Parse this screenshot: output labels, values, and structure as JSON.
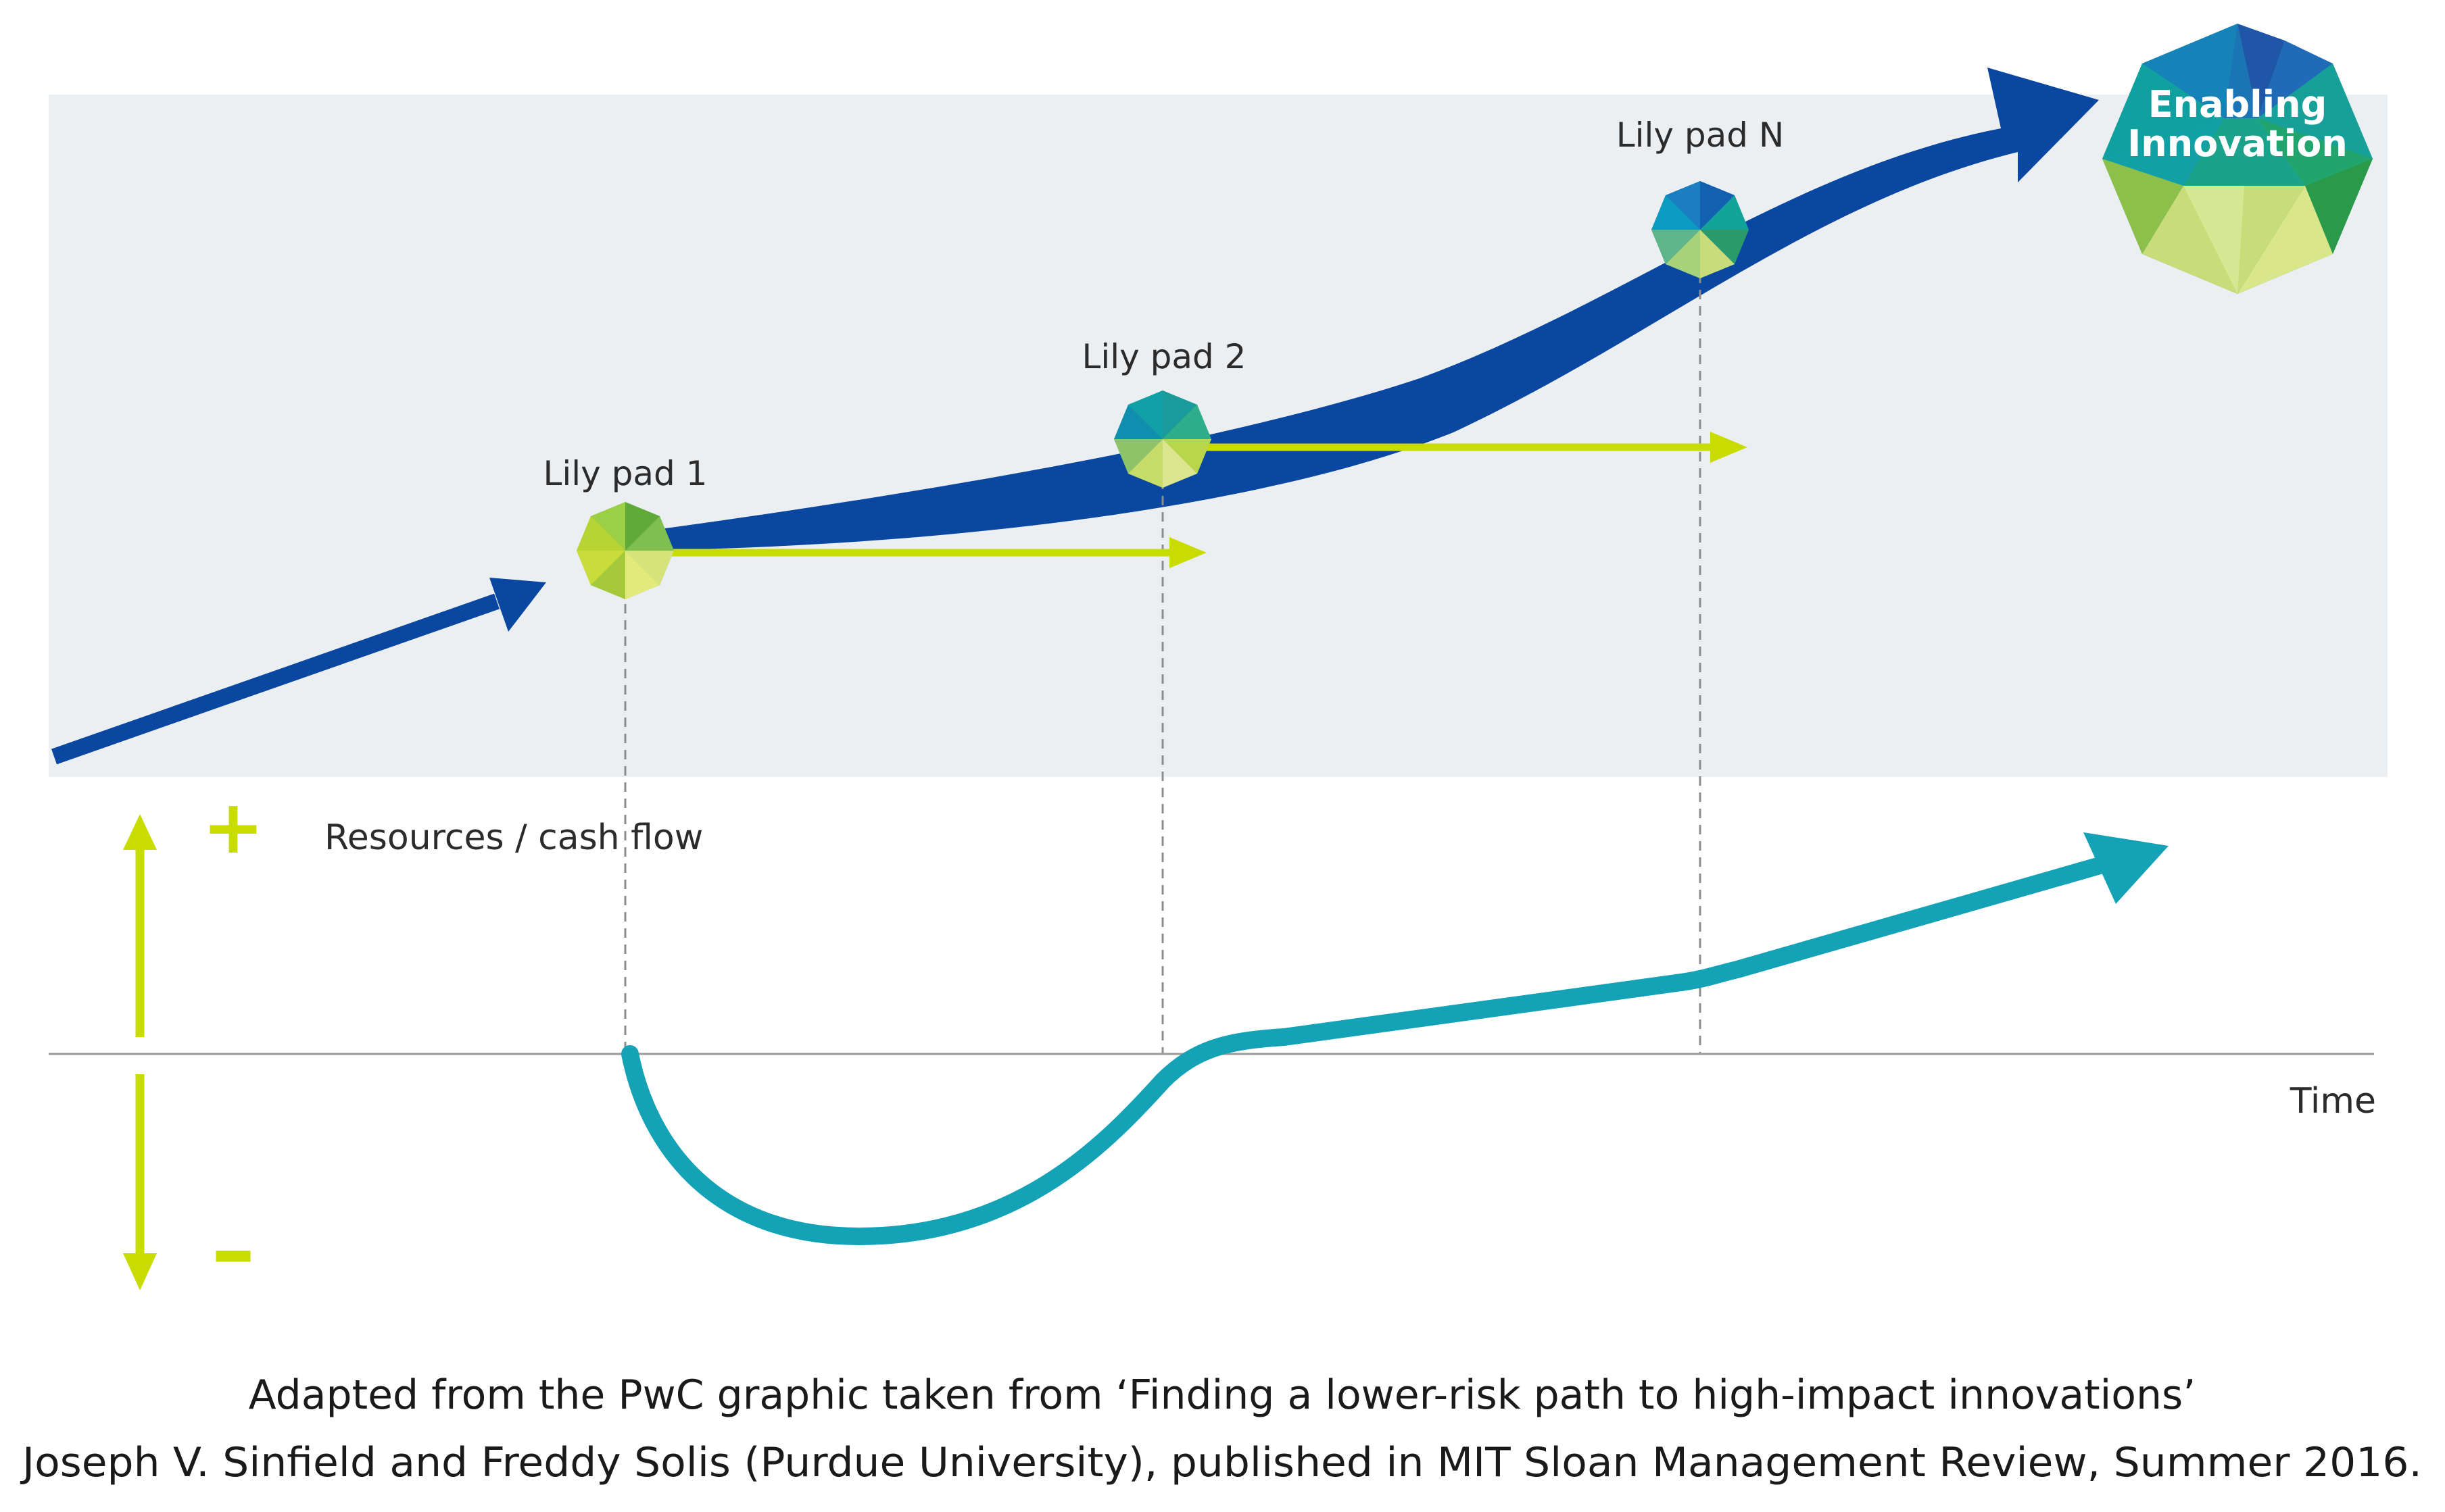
{
  "diagram": {
    "lily_pads": [
      {
        "label": "Lily pad 1"
      },
      {
        "label": "Lily pad 2"
      },
      {
        "label": "Lily pad N"
      }
    ],
    "goal": {
      "line1": "Enabling",
      "line2": "Innovation"
    },
    "y_axis": {
      "plus": "+",
      "minus": "–",
      "label": "Resources / cash flow"
    },
    "x_axis": {
      "label": "Time"
    }
  },
  "caption": {
    "line1": "Adapted from the PwC graphic taken from ‘Finding a lower-risk path to high-impact innovations’",
    "line2": "Joseph V. Sinfield and Freddy Solis (Purdue University), published in MIT Sloan Management Review, Summer 2016."
  },
  "colors": {
    "panel": "#eceff2",
    "path_blue": "#0a47a0",
    "lime": "#c8dc00",
    "cash_teal": "#14a2b6",
    "axis_gray": "#9a9a9a",
    "text": "#2b2b2b"
  }
}
